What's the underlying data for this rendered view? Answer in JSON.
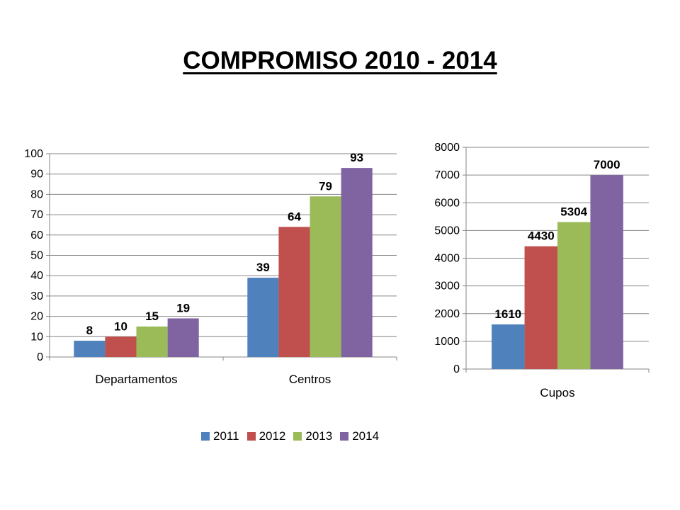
{
  "title": "COMPROMISO 2010 - 2014",
  "colors": {
    "2011": "#4F81BD",
    "2012": "#C0504D",
    "2013": "#9BBB59",
    "2014": "#8064A2",
    "grid": "#868686",
    "text": "#000000"
  },
  "legend": {
    "placement": "bottom",
    "items": [
      "2011",
      "2012",
      "2013",
      "2014"
    ]
  },
  "chart_data": [
    {
      "type": "bar",
      "categories": [
        "Departamentos",
        "Centros"
      ],
      "series": [
        {
          "name": "2011",
          "values": [
            8,
            39
          ]
        },
        {
          "name": "2012",
          "values": [
            10,
            64
          ]
        },
        {
          "name": "2013",
          "values": [
            15,
            79
          ]
        },
        {
          "name": "2014",
          "values": [
            19,
            93
          ]
        }
      ],
      "ylim": [
        0,
        100
      ],
      "yticks": [
        "0",
        "10",
        "20",
        "30",
        "40",
        "50",
        "60",
        "70",
        "80",
        "90",
        "100"
      ],
      "grid": true,
      "data_labels": true
    },
    {
      "type": "bar",
      "categories": [
        "Cupos"
      ],
      "series": [
        {
          "name": "2011",
          "values": [
            1610
          ]
        },
        {
          "name": "2012",
          "values": [
            4430
          ]
        },
        {
          "name": "2013",
          "values": [
            5304
          ]
        },
        {
          "name": "2014",
          "values": [
            7000
          ]
        }
      ],
      "ylim": [
        0,
        8000
      ],
      "yticks": [
        "0",
        "1000",
        "2000",
        "3000",
        "4000",
        "5000",
        "6000",
        "7000",
        "8000"
      ],
      "grid": true,
      "data_labels": true
    }
  ]
}
